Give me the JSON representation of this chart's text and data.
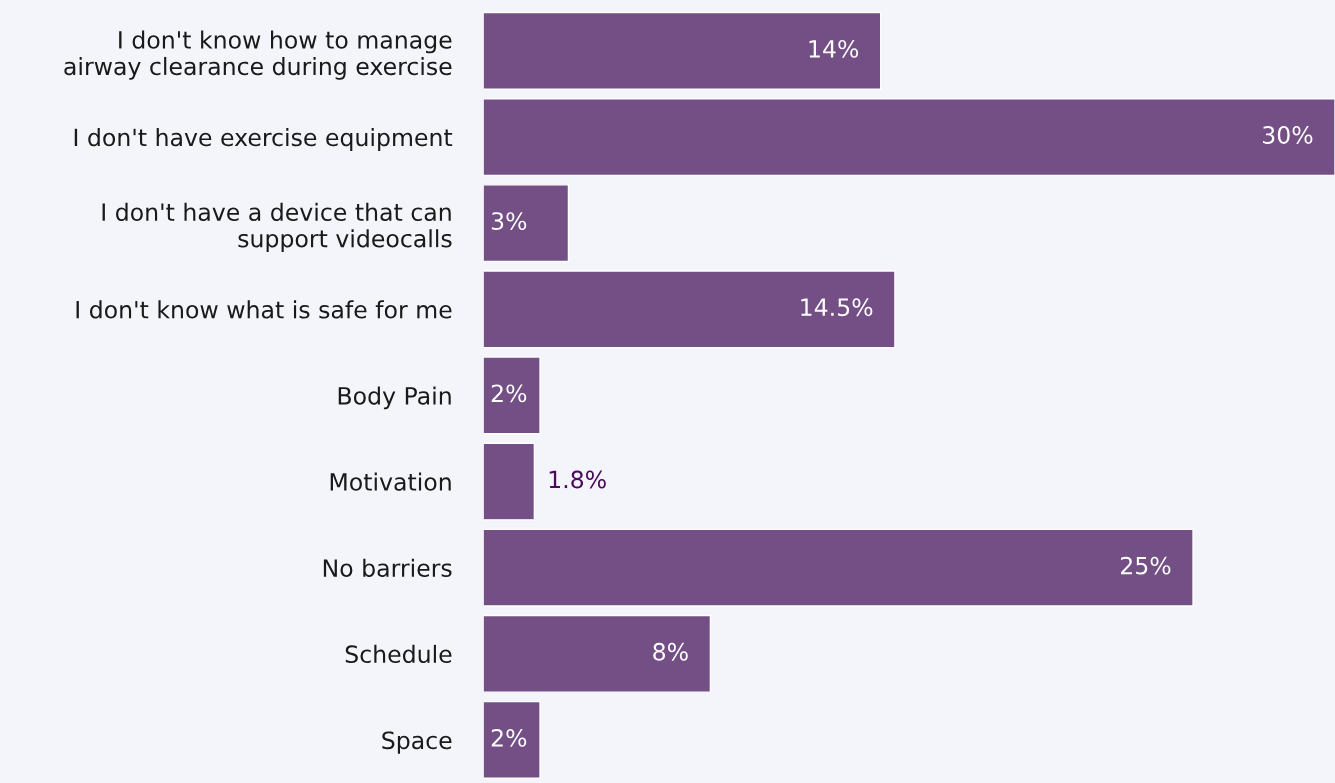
{
  "chart_data": {
    "type": "bar",
    "orientation": "horizontal",
    "categories": [
      "I don't know how to manage\nairway clearance during exercise",
      "I don't have exercise equipment",
      "I don't have a device that can\nsupport videocalls",
      "I don't know what is safe for me",
      "Body Pain",
      "Motivation",
      "No barriers",
      "Schedule",
      "Space"
    ],
    "values": [
      14,
      30,
      3,
      14.5,
      2,
      1.8,
      25,
      8,
      2
    ],
    "value_labels": [
      "14%",
      "30%",
      "3%",
      "14.5%",
      "2%",
      "1.8%",
      "25%",
      "8%",
      "2%"
    ],
    "color": "#734f86",
    "grid": false,
    "legend": false
  }
}
